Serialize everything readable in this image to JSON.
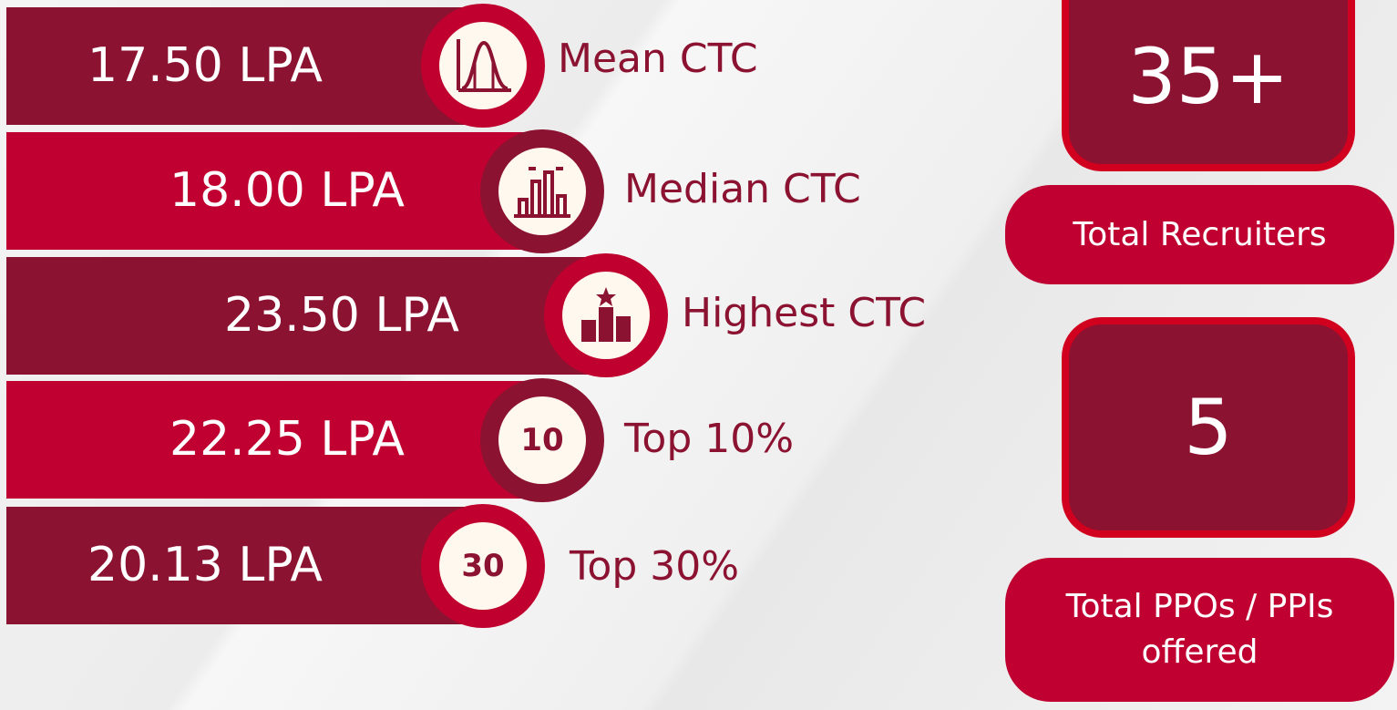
{
  "rows": [
    {
      "value": "17.50 LPA",
      "label": "Mean CTC"
    },
    {
      "value": "18.00 LPA",
      "label": "Median CTC"
    },
    {
      "value": "23.50 LPA",
      "label": "Highest CTC"
    },
    {
      "value": "22.25 LPA",
      "badge": "10",
      "label": "Top 10%"
    },
    {
      "value": "20.13 LPA",
      "badge": "30",
      "label": "Top 30%"
    }
  ],
  "stats": [
    {
      "value": "35+",
      "label": "Total Recruiters"
    },
    {
      "value": "5",
      "label": "Total PPOs / PPIs offered"
    }
  ]
}
